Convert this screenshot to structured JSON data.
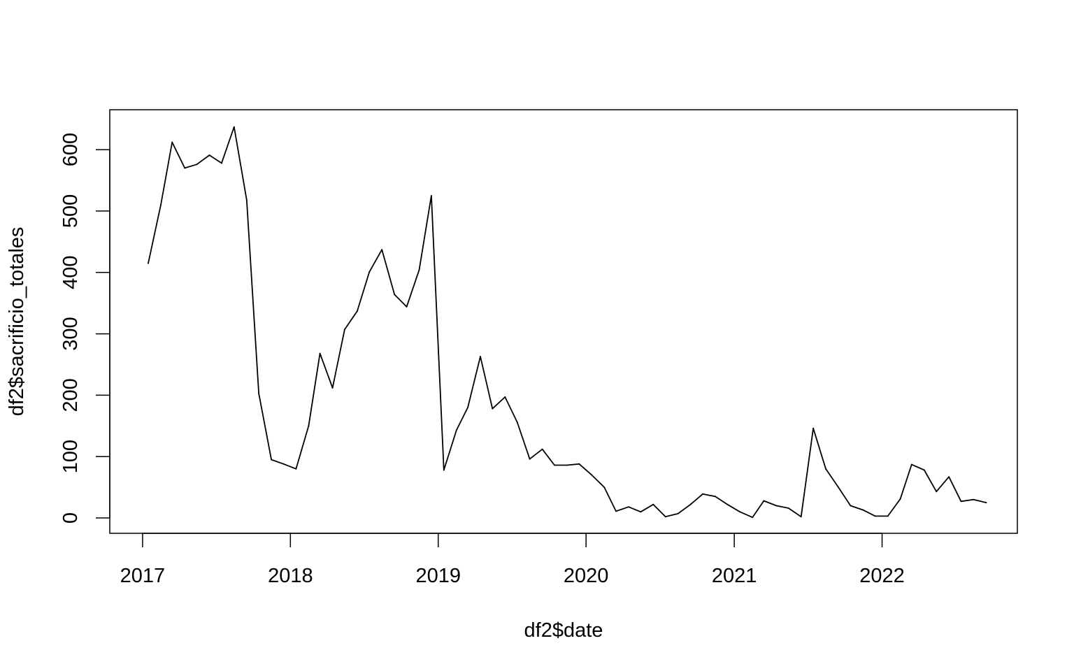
{
  "chart_data": {
    "type": "line",
    "xlabel": "df2$date",
    "ylabel": "df2$sacrificio_totales",
    "xlim": [
      "2016-10-12",
      "2022-12-01"
    ],
    "ylim": [
      -25,
      665
    ],
    "x_ticks": [
      "2017-01-01",
      "2018-01-01",
      "2019-01-01",
      "2020-01-01",
      "2021-01-01",
      "2022-01-01"
    ],
    "x_tick_labels": [
      "2017",
      "2018",
      "2019",
      "2020",
      "2021",
      "2022"
    ],
    "y_ticks": [
      0,
      100,
      200,
      300,
      400,
      500,
      600
    ],
    "y_tick_labels": [
      "0",
      "100",
      "200",
      "300",
      "400",
      "500",
      "600"
    ],
    "grid": false,
    "series": [
      {
        "x": [
          "2017-01",
          "2017-02",
          "2017-03",
          "2017-04",
          "2017-05",
          "2017-06",
          "2017-07",
          "2017-08",
          "2017-09",
          "2017-10",
          "2017-11",
          "2017-12",
          "2018-01",
          "2018-02",
          "2018-03",
          "2018-04",
          "2018-05",
          "2018-06",
          "2018-07",
          "2018-08",
          "2018-09",
          "2018-10",
          "2018-11",
          "2018-12",
          "2019-01",
          "2019-02",
          "2019-03",
          "2019-04",
          "2019-05",
          "2019-06",
          "2019-07",
          "2019-08",
          "2019-09",
          "2019-10",
          "2019-11",
          "2019-12",
          "2020-01",
          "2020-02",
          "2020-03",
          "2020-04",
          "2020-05",
          "2020-06",
          "2020-07",
          "2020-08",
          "2020-09",
          "2020-10",
          "2020-11",
          "2020-12",
          "2021-01",
          "2021-02",
          "2021-03",
          "2021-04",
          "2021-05",
          "2021-06",
          "2021-07",
          "2021-08",
          "2021-09",
          "2021-10",
          "2021-11",
          "2021-12",
          "2022-01",
          "2022-02",
          "2022-03",
          "2022-04",
          "2022-05",
          "2022-06",
          "2022-07",
          "2022-08",
          "2022-09"
        ],
        "values": [
          415,
          510,
          612,
          570,
          576,
          591,
          578,
          637,
          518,
          203,
          95,
          88,
          80,
          150,
          268,
          212,
          307,
          337,
          401,
          437,
          364,
          344,
          404,
          525,
          78,
          143,
          180,
          263,
          178,
          197,
          156,
          96,
          112,
          86,
          86,
          88,
          70,
          50,
          11,
          18,
          10,
          22,
          2,
          7,
          22,
          39,
          35,
          22,
          10,
          1,
          28,
          20,
          16,
          2,
          146,
          80,
          50,
          20,
          13,
          3,
          3,
          31,
          87,
          78,
          43,
          67,
          27,
          30,
          25
        ]
      }
    ]
  }
}
